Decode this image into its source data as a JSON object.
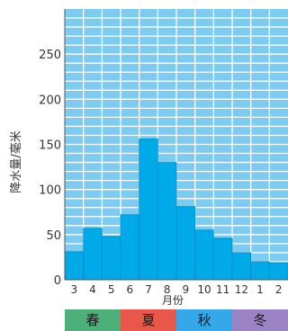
{
  "chart_data": {
    "type": "bar",
    "categories": [
      "3",
      "4",
      "5",
      "6",
      "7",
      "8",
      "9",
      "10",
      "11",
      "12",
      "1",
      "2"
    ],
    "values": [
      31,
      57,
      48,
      72,
      156,
      130,
      81,
      55,
      46,
      30,
      20,
      19
    ],
    "xlabel": "月份",
    "ylabel": "降水量/毫米",
    "ylim": [
      0,
      300
    ],
    "yticks": [
      0,
      50,
      100,
      150,
      200,
      250
    ],
    "grid": true,
    "colors": {
      "bar": "#00a9e7",
      "bar_stroke": "#0089c4",
      "plot_background": "#7cccf2",
      "grid": "#ffffff"
    },
    "seasons": [
      {
        "label": "春",
        "color": "#4daf7a"
      },
      {
        "label": "夏",
        "color": "#e8574a"
      },
      {
        "label": "秋",
        "color": "#34a8e8"
      },
      {
        "label": "冬",
        "color": "#9a82c4"
      }
    ]
  }
}
